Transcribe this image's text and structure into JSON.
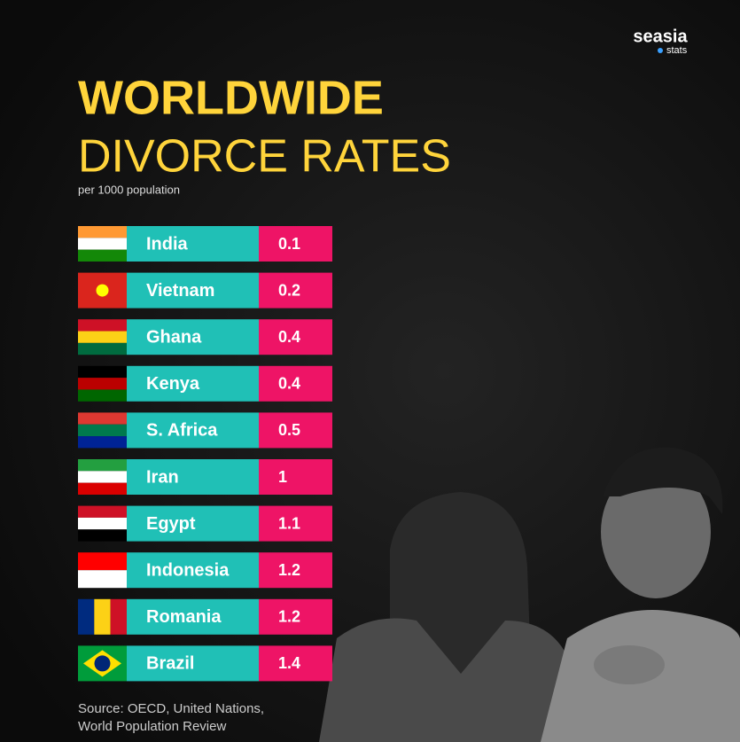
{
  "logo": {
    "name": "seasia",
    "tag": "stats"
  },
  "header": {
    "title": "WORLDWIDE",
    "subtitle": "DIVORCE RATES",
    "note": "per 1000 population"
  },
  "table": {
    "rows": [
      [
        "India",
        0.1
      ],
      [
        "Vietnam",
        0.2
      ],
      [
        "Ghana",
        0.4
      ],
      [
        "Kenya",
        0.4
      ],
      [
        "S. Africa",
        0.5
      ],
      [
        "Iran",
        1
      ],
      [
        "Egypt",
        1.1
      ],
      [
        "Indonesia",
        1.2
      ],
      [
        "Romania",
        1.2
      ],
      [
        "Brazil",
        1.4
      ]
    ]
  },
  "source": [
    "Source: OECD, United Nations,",
    "World Population Review"
  ]
}
